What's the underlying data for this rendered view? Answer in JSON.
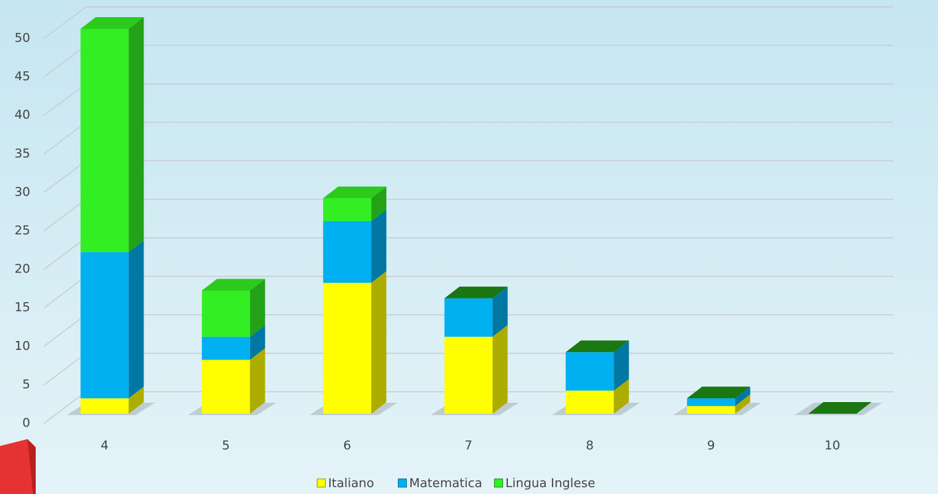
{
  "chart_data": {
    "type": "bar3d-stacked",
    "categories": [
      "4",
      "5",
      "6",
      "7",
      "8",
      "9",
      "10"
    ],
    "series": [
      {
        "name": "Italiano",
        "color": "#ffff00",
        "values": [
          2,
          7,
          17,
          10,
          3,
          1,
          0
        ]
      },
      {
        "name": "Matematica",
        "color": "#00b0f0",
        "values": [
          19,
          3,
          8,
          5,
          5,
          1,
          0
        ]
      },
      {
        "name": "Lingua Inglese",
        "color": "#33ee22",
        "values": [
          29,
          6,
          3,
          0,
          0,
          0,
          0
        ]
      }
    ],
    "ylim": [
      0,
      50
    ],
    "yticks": [
      0,
      5,
      10,
      15,
      20,
      25,
      30,
      35,
      40,
      45,
      50
    ],
    "grid": true,
    "legend": "bottom"
  }
}
